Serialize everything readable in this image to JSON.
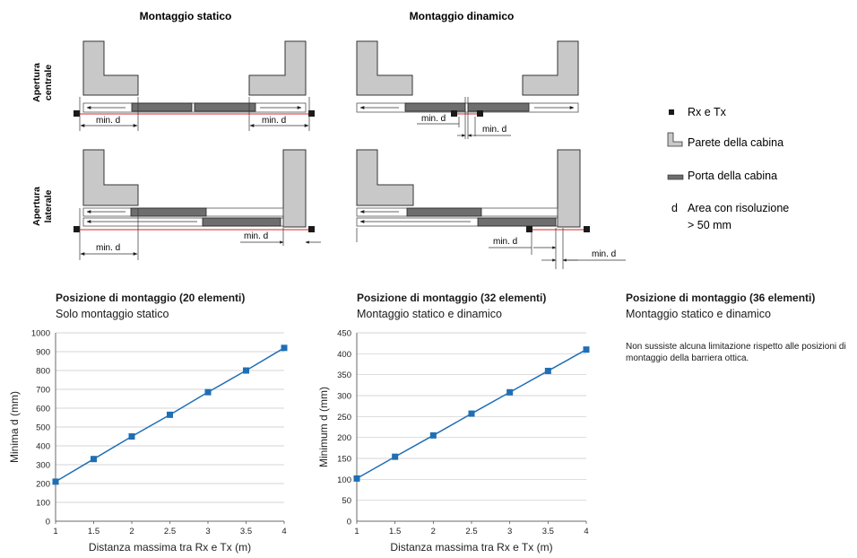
{
  "diagram": {
    "col_static": "Montaggio statico",
    "col_dynamic": "Montaggio dinamico",
    "row_central": [
      "Apertura",
      "centrale"
    ],
    "row_lateral": [
      "Apertura",
      "laterale"
    ],
    "dim_label": "min. d",
    "colors": {
      "wall": "#c8c8c8",
      "door": "#6e6e6e",
      "beam": "#d9252b",
      "sensor": "#1a1a1a"
    }
  },
  "legend": {
    "rx_tx": "Rx e Tx",
    "wall": "Parete della cabina",
    "door": "Porta della cabina",
    "d_symbol": "d",
    "area_line1": "Area con risoluzione",
    "area_line2": "> 50 mm"
  },
  "sections": {
    "s20": {
      "title": "Posizione di montaggio (20 elementi)",
      "subtitle": "Solo montaggio statico"
    },
    "s32": {
      "title": "Posizione di montaggio (32 elementi)",
      "subtitle": "Montaggio statico e dinamico"
    },
    "s36": {
      "title": "Posizione di montaggio (36 elementi)",
      "subtitle": "Montaggio statico e dinamico",
      "note": "Non sussiste alcuna limitazione rispetto alle posizioni di montaggio della barriera ottica."
    }
  },
  "chart_data": [
    {
      "type": "line",
      "x": [
        1,
        1.5,
        2,
        2.5,
        3,
        3.5,
        4
      ],
      "series": [
        {
          "values": [
            210,
            330,
            450,
            565,
            685,
            800,
            920
          ]
        }
      ],
      "xlabel": "Distanza massima tra Rx e Tx (m)",
      "ylabel": "Minima d (mm)",
      "xticks": [
        "1",
        "1.5",
        "2",
        "2.5",
        "3",
        "3.5",
        "4"
      ],
      "yticks": [
        "0",
        "100",
        "200",
        "300",
        "400",
        "500",
        "600",
        "700",
        "800",
        "900",
        "1000"
      ],
      "xlim": [
        1,
        4
      ],
      "ylim": [
        0,
        1000
      ],
      "grid": true,
      "line_color": "#1f6fb5"
    },
    {
      "type": "line",
      "x": [
        1,
        1.5,
        2,
        2.5,
        3,
        3.5,
        4
      ],
      "series": [
        {
          "values": [
            102,
            154,
            205,
            257,
            308,
            359,
            410
          ]
        }
      ],
      "xlabel": "Distanza massima tra Rx e Tx (m)",
      "ylabel": "Minimum d (mm)",
      "xticks": [
        "1",
        "1.5",
        "2",
        "2.5",
        "3",
        "3.5",
        "4"
      ],
      "yticks": [
        "0",
        "50",
        "100",
        "150",
        "200",
        "250",
        "300",
        "350",
        "400",
        "450"
      ],
      "xlim": [
        1,
        4
      ],
      "ylim": [
        0,
        450
      ],
      "grid": true,
      "line_color": "#1f6fb5"
    }
  ]
}
